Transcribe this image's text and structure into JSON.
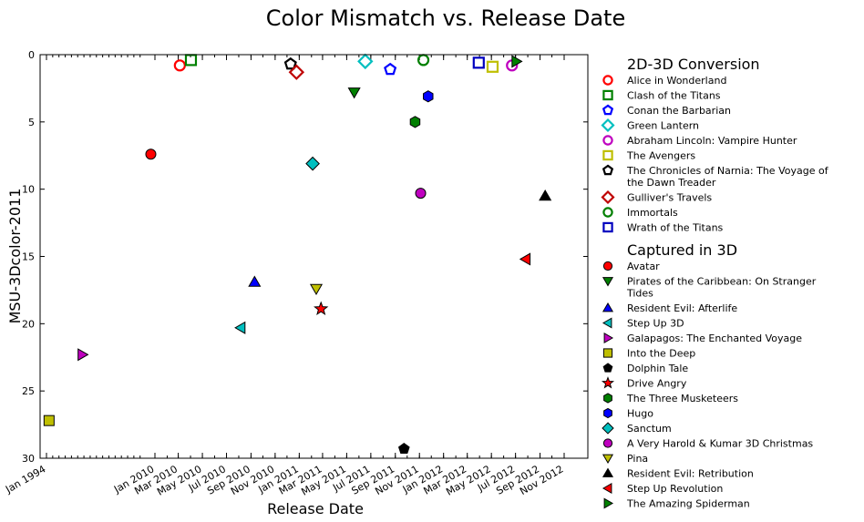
{
  "chart_data": {
    "type": "scatter",
    "title": "Color Mismatch vs. Release Date",
    "xlabel": "Release Date",
    "ylabel": "MSU-3Dcolor-2011",
    "ylim": [
      0,
      30
    ],
    "y_inverted": true,
    "yticks": [
      0,
      5,
      10,
      15,
      20,
      25,
      30
    ],
    "xticks": [
      "Jan 1994",
      "Jan 2010",
      "Mar 2010",
      "May 2010",
      "Jul 2010",
      "Sep 2010",
      "Nov 2010",
      "Jan 2011",
      "Mar 2011",
      "May 2011",
      "Jul 2011",
      "Sep 2011",
      "Nov 2011",
      "Jan 2012",
      "Mar 2012",
      "May 2012",
      "Jul 2012",
      "Sep 2012",
      "Nov 2012"
    ],
    "legend_placement": "right-outside",
    "groups": [
      {
        "heading": "2D-3D Conversion",
        "series": [
          {
            "name": "Alice in Wonderland",
            "marker": "circle",
            "color": "#ff0000",
            "filled": false,
            "x": "2010-03-05",
            "y": 0.8
          },
          {
            "name": "Clash of the Titans",
            "marker": "square",
            "color": "#008000",
            "filled": false,
            "x": "2010-04-02",
            "y": 0.4
          },
          {
            "name": "Conan the Barbarian",
            "marker": "pentagon",
            "color": "#0000ff",
            "filled": false,
            "x": "2011-08-19",
            "y": 1.1
          },
          {
            "name": "Green Lantern",
            "marker": "diamond",
            "color": "#00bfbf",
            "filled": false,
            "x": "2011-06-17",
            "y": 0.5
          },
          {
            "name": "Abraham Lincoln: Vampire Hunter",
            "marker": "circle",
            "color": "#bf00bf",
            "filled": false,
            "x": "2012-06-22",
            "y": 0.8
          },
          {
            "name": "The Avengers",
            "marker": "square",
            "color": "#bfbf00",
            "filled": false,
            "x": "2012-05-04",
            "y": 0.9
          },
          {
            "name": "The Chronicles of Narnia: The Voyage of the Dawn Treader",
            "marker": "pentagon",
            "color": "#000000",
            "filled": false,
            "x": "2010-12-10",
            "y": 0.7
          },
          {
            "name": "Gulliver's Travels",
            "marker": "diamond",
            "color": "#bf0000",
            "filled": false,
            "x": "2010-12-25",
            "y": 1.3
          },
          {
            "name": "Immortals",
            "marker": "circle",
            "color": "#007f00",
            "filled": false,
            "x": "2011-11-11",
            "y": 0.4
          },
          {
            "name": "Wrath of the Titans",
            "marker": "square",
            "color": "#0000bf",
            "filled": false,
            "x": "2012-03-30",
            "y": 0.6
          }
        ]
      },
      {
        "heading": "Captured in 3D",
        "series": [
          {
            "name": "Avatar",
            "marker": "circle",
            "color": "#ff0000",
            "filled": true,
            "x": "2009-12-18",
            "y": 7.4
          },
          {
            "name": "Pirates of the Caribbean: On Stranger Tides",
            "marker": "triangle-down",
            "color": "#008000",
            "filled": true,
            "x": "2011-05-20",
            "y": 2.8
          },
          {
            "name": "Resident Evil: Afterlife",
            "marker": "triangle-up",
            "color": "#0000ff",
            "filled": true,
            "x": "2010-09-10",
            "y": 16.9
          },
          {
            "name": "Step Up 3D",
            "marker": "triangle-left",
            "color": "#00bfbf",
            "filled": true,
            "x": "2010-08-06",
            "y": 20.3
          },
          {
            "name": "Galapagos: The Enchanted Voyage",
            "marker": "triangle-right",
            "color": "#bf00bf",
            "filled": true,
            "x": "1999-10-01",
            "y": 22.3
          },
          {
            "name": "Into the Deep",
            "marker": "square",
            "color": "#bfbf00",
            "filled": true,
            "x": "1994-06-01",
            "y": 27.2
          },
          {
            "name": "Dolphin Tale",
            "marker": "pentagon",
            "color": "#000000",
            "filled": true,
            "x": "2011-09-23",
            "y": 29.3
          },
          {
            "name": "Drive Angry",
            "marker": "star",
            "color": "#ff0000",
            "filled": true,
            "x": "2011-02-25",
            "y": 18.9
          },
          {
            "name": "The Three Musketeers",
            "marker": "hexagon",
            "color": "#007f00",
            "filled": true,
            "x": "2011-10-21",
            "y": 5.0
          },
          {
            "name": "Hugo",
            "marker": "hexagon",
            "color": "#0000ff",
            "filled": true,
            "x": "2011-11-23",
            "y": 3.1
          },
          {
            "name": "Sanctum",
            "marker": "diamond",
            "color": "#00bfbf",
            "filled": true,
            "x": "2011-02-04",
            "y": 8.1
          },
          {
            "name": "A Very Harold & Kumar 3D Christmas",
            "marker": "circle",
            "color": "#bf00bf",
            "filled": true,
            "x": "2011-11-04",
            "y": 10.3
          },
          {
            "name": "Pina",
            "marker": "triangle-down",
            "color": "#bfbf00",
            "filled": true,
            "x": "2011-02-13",
            "y": 17.4
          },
          {
            "name": "Resident Evil: Retribution",
            "marker": "triangle-up",
            "color": "#000000",
            "filled": true,
            "x": "2012-09-14",
            "y": 10.5
          },
          {
            "name": "Step Up Revolution",
            "marker": "triangle-left",
            "color": "#ff0000",
            "filled": true,
            "x": "2012-07-27",
            "y": 15.2
          },
          {
            "name": "The Amazing Spiderman",
            "marker": "triangle-right",
            "color": "#008000",
            "filled": true,
            "x": "2012-07-03",
            "y": 0.5
          }
        ]
      }
    ]
  }
}
